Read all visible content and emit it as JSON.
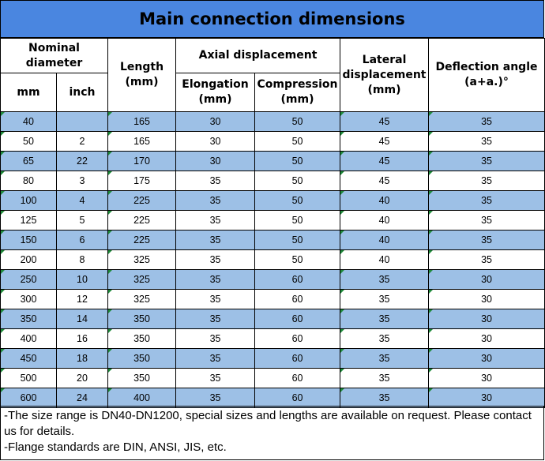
{
  "title": "Main connection dimensions",
  "header": {
    "nominal_diameter": "Nominal diameter",
    "mm": "mm",
    "inch": "inch",
    "length": "Length (mm)",
    "axial_displacement": "Axial displacement",
    "elongation": "Elongation (mm)",
    "compression": "Compression (mm)",
    "lateral_displacement": "Lateral displacement (mm)",
    "deflection_angle": "Deflection angle (a+a.)°"
  },
  "rows": [
    [
      "40",
      "",
      "165",
      "30",
      "50",
      "45",
      "35"
    ],
    [
      "50",
      "2",
      "165",
      "30",
      "50",
      "45",
      "35"
    ],
    [
      "65",
      "22",
      "170",
      "30",
      "50",
      "45",
      "35"
    ],
    [
      "80",
      "3",
      "175",
      "35",
      "50",
      "45",
      "35"
    ],
    [
      "100",
      "4",
      "225",
      "35",
      "50",
      "40",
      "35"
    ],
    [
      "125",
      "5",
      "225",
      "35",
      "50",
      "40",
      "35"
    ],
    [
      "150",
      "6",
      "225",
      "35",
      "50",
      "40",
      "35"
    ],
    [
      "200",
      "8",
      "325",
      "35",
      "50",
      "40",
      "35"
    ],
    [
      "250",
      "10",
      "325",
      "35",
      "60",
      "35",
      "30"
    ],
    [
      "300",
      "12",
      "325",
      "35",
      "60",
      "35",
      "30"
    ],
    [
      "350",
      "14",
      "350",
      "35",
      "60",
      "35",
      "30"
    ],
    [
      "400",
      "16",
      "350",
      "35",
      "60",
      "35",
      "30"
    ],
    [
      "450",
      "18",
      "350",
      "35",
      "60",
      "35",
      "30"
    ],
    [
      "500",
      "20",
      "350",
      "35",
      "60",
      "35",
      "30"
    ],
    [
      "600",
      "24",
      "400",
      "35",
      "60",
      "35",
      "30"
    ]
  ],
  "notes": [
    "-The size range is DN40-DN1200, special sizes and lengths are available on request. Please contact us for details.",
    "-Flange standards are DIN, ANSI, JIS, etc."
  ],
  "colors": {
    "title_bg": "#4a86e0",
    "row_blue": "#9dc0e6",
    "corner_marker": "#1d8a3a"
  }
}
